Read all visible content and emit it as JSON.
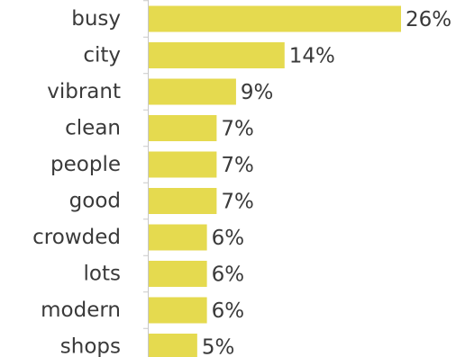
{
  "chart_data": {
    "type": "bar",
    "orientation": "horizontal",
    "categories": [
      "busy",
      "city",
      "vibrant",
      "clean",
      "people",
      "good",
      "crowded",
      "lots",
      "modern",
      "shops"
    ],
    "values": [
      26,
      14,
      9,
      7,
      7,
      7,
      6,
      6,
      6,
      5
    ],
    "value_labels": [
      "26%",
      "14%",
      "9%",
      "7%",
      "7%",
      "7%",
      "6%",
      "6%",
      "6%",
      "5%"
    ],
    "unit": "%",
    "xlim": [
      0,
      26
    ],
    "grid": false,
    "legend": "none",
    "colors": {
      "bar": "#e5da4f",
      "axis": "#c8c8c8",
      "text": "#3a3a3a"
    }
  }
}
